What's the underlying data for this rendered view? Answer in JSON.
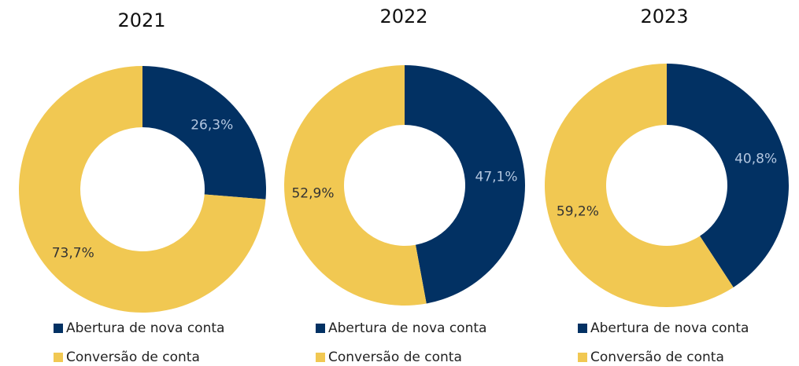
{
  "chart_data": [
    {
      "type": "pie",
      "title": "2021",
      "categories": [
        "Abertura de nova conta",
        "Conversão de conta"
      ],
      "values": [
        26.3,
        73.7
      ],
      "value_labels": [
        "26,3%",
        "73,7%"
      ],
      "colors": [
        "#023163",
        "#f1c852"
      ]
    },
    {
      "type": "pie",
      "title": "2022",
      "categories": [
        "Abertura de nova conta",
        "Conversão de conta"
      ],
      "values": [
        47.1,
        52.9
      ],
      "value_labels": [
        "47,1%",
        "52,9%"
      ],
      "colors": [
        "#023163",
        "#f1c852"
      ]
    },
    {
      "type": "pie",
      "title": "2023",
      "categories": [
        "Abertura de nova conta",
        "Conversão de conta"
      ],
      "values": [
        40.8,
        59.2
      ],
      "value_labels": [
        "40,8%",
        "59,2%"
      ],
      "colors": [
        "#023163",
        "#f1c852"
      ]
    }
  ]
}
